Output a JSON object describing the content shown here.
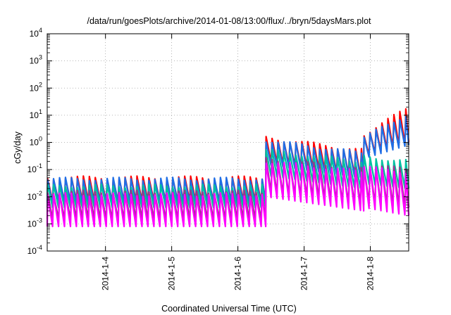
{
  "chart_data": {
    "type": "line",
    "title": "/data/run/goesPlots/archive/2014-01-08/13:00/flux/../bryn/5daysMars.plot",
    "xlabel": "Coordinated Universal Time (UTC)",
    "ylabel": "cGy/day",
    "yscale": "log",
    "ylim": [
      0.0001,
      10000
    ],
    "xlim_days": [
      3.12,
      8.58
    ],
    "x_ticks": [
      {
        "value": 4,
        "label": "2014-1-4"
      },
      {
        "value": 5,
        "label": "2014-1-5"
      },
      {
        "value": 6,
        "label": "2014-1-6"
      },
      {
        "value": 7,
        "label": "2014-1-7"
      },
      {
        "value": 8,
        "label": "2014-1-8"
      }
    ],
    "y_ticks": [
      {
        "value": 0.0001,
        "base": "10",
        "exp": "-4"
      },
      {
        "value": 0.001,
        "base": "10",
        "exp": "-3"
      },
      {
        "value": 0.01,
        "base": "10",
        "exp": "-2"
      },
      {
        "value": 0.1,
        "base": "10",
        "exp": "-1"
      },
      {
        "value": 1,
        "base": "10",
        "exp": "0"
      },
      {
        "value": 10,
        "base": "10",
        "exp": "1"
      },
      {
        "value": 100,
        "base": "10",
        "exp": "2"
      },
      {
        "value": 1000,
        "base": "10",
        "exp": "3"
      },
      {
        "value": 10000,
        "base": "10",
        "exp": "4"
      }
    ],
    "grid": true,
    "sawtooth_period_days": 0.09,
    "series": [
      {
        "color": "#ff0000",
        "segments": [
          {
            "x_start": 3.12,
            "x_end": 6.42,
            "peak": 0.05,
            "trough": 0.007
          },
          {
            "x_start": 6.42,
            "x_end": 7.9,
            "peak_start": 1.5,
            "peak_end": 0.5,
            "trough_start": 0.2,
            "trough_end": 0.06
          },
          {
            "x_start": 7.9,
            "x_end": 8.58,
            "peak_start": 2.0,
            "peak_end": 20,
            "trough_start": 0.3,
            "trough_end": 1.0
          }
        ]
      },
      {
        "color": "#1e6ee6",
        "segments": [
          {
            "x_start": 3.12,
            "x_end": 6.42,
            "peak": 0.045,
            "trough": 0.006
          },
          {
            "x_start": 6.42,
            "x_end": 7.9,
            "peak_start": 1.2,
            "peak_end": 0.4,
            "trough_start": 0.15,
            "trough_end": 0.05
          },
          {
            "x_start": 7.9,
            "x_end": 8.58,
            "peak_start": 1.5,
            "peak_end": 12,
            "trough_start": 0.25,
            "trough_end": 0.8
          }
        ]
      },
      {
        "color": "#00c0a0",
        "segments": [
          {
            "x_start": 3.12,
            "x_end": 6.42,
            "peak": 0.025,
            "trough": 0.004
          },
          {
            "x_start": 6.42,
            "x_end": 7.9,
            "peak_start": 0.5,
            "peak_end": 0.2,
            "trough_start": 0.06,
            "trough_end": 0.02
          },
          {
            "x_start": 7.9,
            "x_end": 8.58,
            "peak_start": 0.3,
            "peak_end": 0.2,
            "trough_start": 0.03,
            "trough_end": 0.02
          }
        ]
      },
      {
        "color": "#a0308c",
        "segments": [
          {
            "x_start": 3.12,
            "x_end": 6.42,
            "peak": 0.015,
            "trough": 0.0015
          },
          {
            "x_start": 6.42,
            "x_end": 7.9,
            "peak_start": 0.25,
            "peak_end": 0.1,
            "trough_start": 0.015,
            "trough_end": 0.005
          },
          {
            "x_start": 7.9,
            "x_end": 8.58,
            "peak_start": 0.15,
            "peak_end": 0.1,
            "trough_start": 0.006,
            "trough_end": 0.004
          }
        ]
      },
      {
        "color": "#ff00ff",
        "segments": [
          {
            "x_start": 3.12,
            "x_end": 6.42,
            "peak": 0.012,
            "trough": 0.0008
          },
          {
            "x_start": 6.42,
            "x_end": 7.9,
            "peak_start": 0.2,
            "peak_end": 0.08,
            "trough_start": 0.01,
            "trough_end": 0.003
          },
          {
            "x_start": 7.9,
            "x_end": 8.58,
            "peak_start": 0.12,
            "peak_end": 0.08,
            "trough_start": 0.004,
            "trough_end": 0.002
          }
        ]
      }
    ]
  }
}
